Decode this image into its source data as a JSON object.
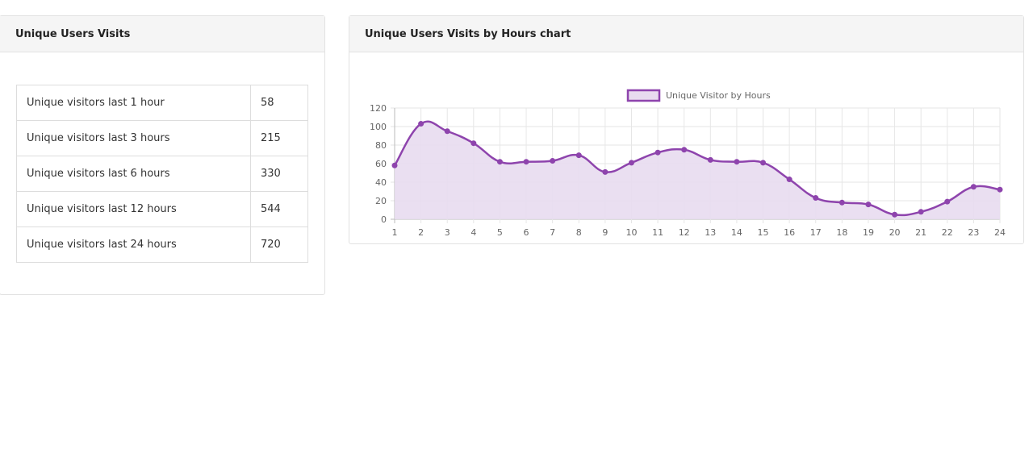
{
  "left_panel": {
    "title": "Unique Users Visits",
    "rows": [
      {
        "label": "Unique visitors last 1 hour",
        "value": "58"
      },
      {
        "label": "Unique visitors last 3 hours",
        "value": "215"
      },
      {
        "label": "Unique visitors last 6 hours",
        "value": "330"
      },
      {
        "label": "Unique visitors last 12 hours",
        "value": "544"
      },
      {
        "label": "Unique visitors last 24 hours",
        "value": "720"
      }
    ]
  },
  "right_panel": {
    "title": "Unique Users Visits by Hours chart"
  },
  "chart_data": {
    "type": "line",
    "area_fill": true,
    "smooth": true,
    "x": [
      "1",
      "2",
      "3",
      "4",
      "5",
      "6",
      "7",
      "8",
      "9",
      "10",
      "11",
      "12",
      "13",
      "14",
      "15",
      "16",
      "17",
      "18",
      "19",
      "20",
      "21",
      "22",
      "23",
      "24"
    ],
    "series": [
      {
        "name": "Unique Visitor by Hours",
        "values": [
          58,
          103,
          95,
          82,
          62,
          62,
          63,
          69,
          51,
          61,
          72,
          75,
          64,
          62,
          61,
          43,
          23,
          18,
          16,
          5,
          8,
          19,
          35,
          32
        ],
        "color": "#8e44ad",
        "fill_color": "#e8dbef"
      }
    ],
    "ylim": [
      0,
      120
    ],
    "yticks": [
      0,
      20,
      40,
      60,
      80,
      100,
      120
    ],
    "grid": true,
    "legend_position": "top-center"
  }
}
